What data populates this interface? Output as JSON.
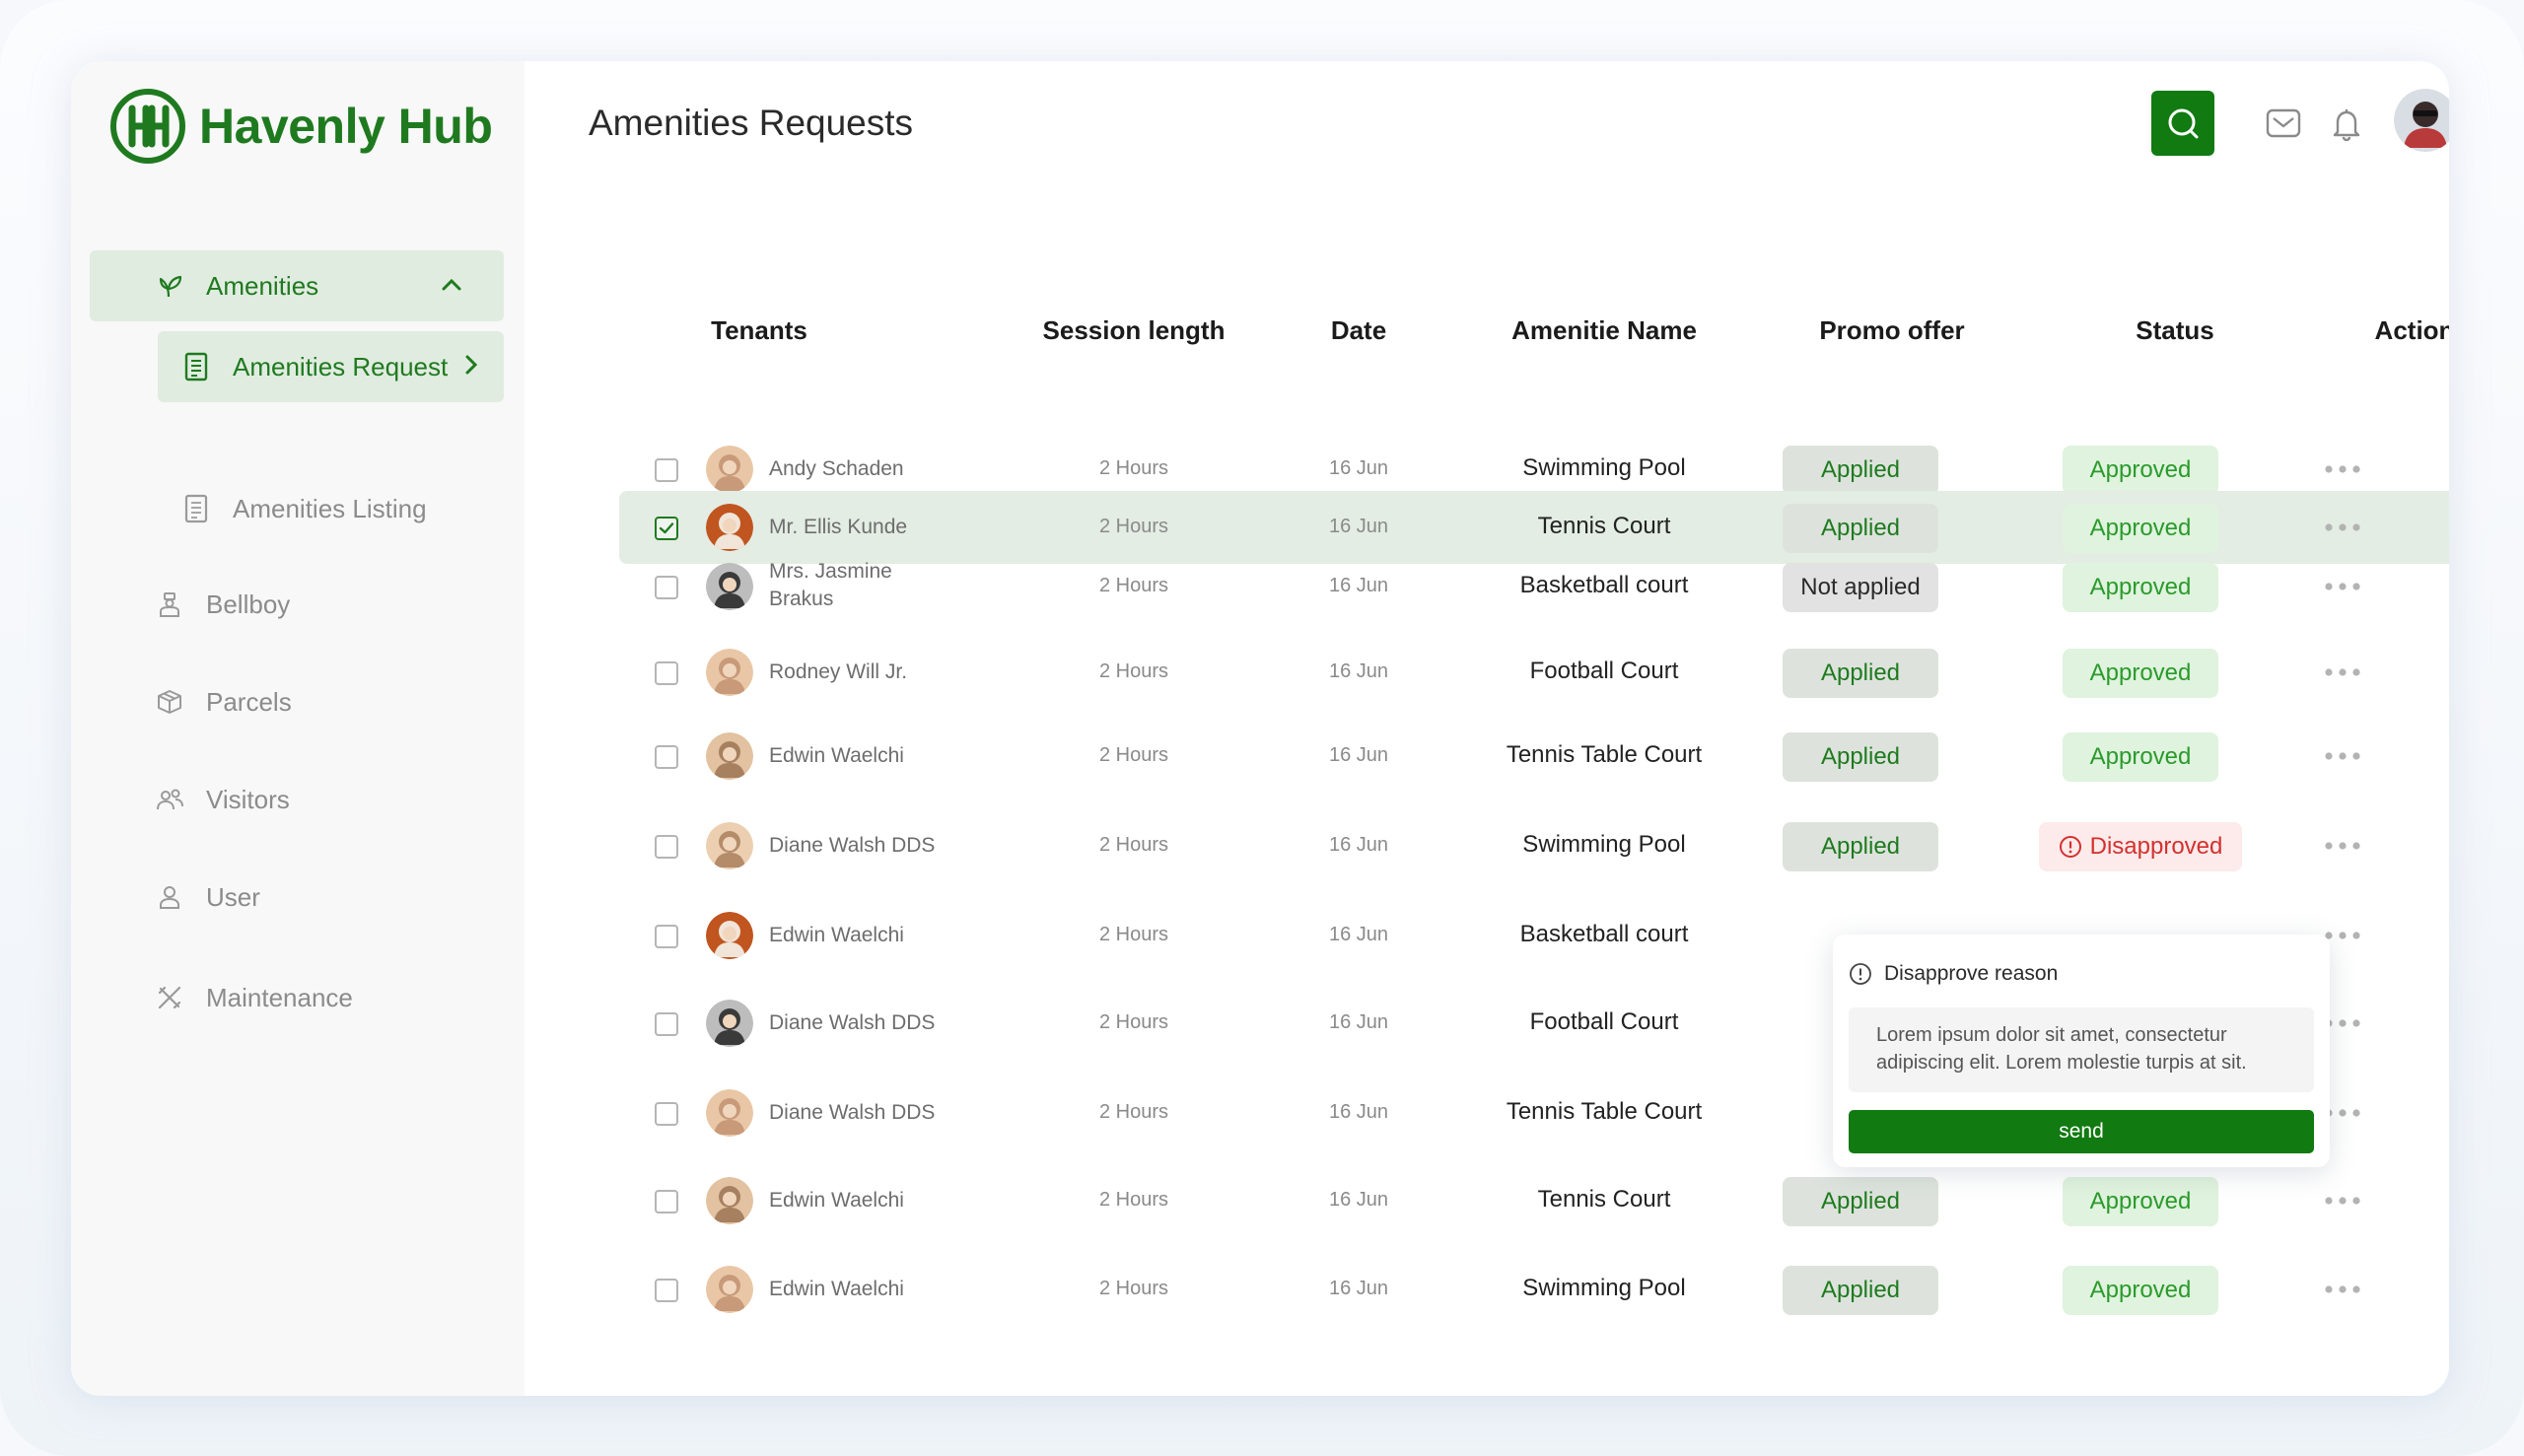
{
  "app": {
    "name": "Havenly Hub"
  },
  "brand": {
    "accent": "#117a11",
    "approved": "#2b9a2b",
    "disapproved": "#d2312f"
  },
  "sidebar": {
    "group": {
      "label": "Amenities",
      "icon": "sprout-icon"
    },
    "sub_active": {
      "label": "Amenities Request",
      "icon": "document-icon"
    },
    "sub_other": {
      "label": "Amenities Listing",
      "icon": "document-icon"
    },
    "items": [
      {
        "label": "Bellboy",
        "icon": "bellboy-icon"
      },
      {
        "label": "Parcels",
        "icon": "parcel-box-icon"
      },
      {
        "label": "Visitors",
        "icon": "visitors-icon"
      },
      {
        "label": "User",
        "icon": "user-icon"
      },
      {
        "label": "Maintenance",
        "icon": "tools-icon"
      }
    ]
  },
  "header": {
    "title": "Amenities Requests"
  },
  "table": {
    "columns": [
      "Tenants",
      "Session length",
      "Date",
      "Amenitie Name",
      "Promo offer",
      "Status",
      "Action"
    ],
    "rows": [
      {
        "name": "Andy Schaden",
        "session": "2 Hours",
        "date": "16 Jun",
        "amenity": "Swimming Pool",
        "promo": "Applied",
        "status": "Approved",
        "checked": false
      },
      {
        "name": "Mr. Ellis Kunde",
        "session": "2 Hours",
        "date": "16 Jun",
        "amenity": "Tennis Court",
        "promo": "Applied",
        "status": "Approved",
        "checked": true
      },
      {
        "name": "Mrs. Jasmine Brakus",
        "session": "2 Hours",
        "date": "16 Jun",
        "amenity": "Basketball court",
        "promo": "Not applied",
        "status": "Approved",
        "checked": false
      },
      {
        "name": "Rodney Will Jr.",
        "session": "2 Hours",
        "date": "16 Jun",
        "amenity": "Football Court",
        "promo": "Applied",
        "status": "Approved",
        "checked": false
      },
      {
        "name": "Edwin Waelchi",
        "session": "2 Hours",
        "date": "16 Jun",
        "amenity": "Tennis Table Court",
        "promo": "Applied",
        "status": "Approved",
        "checked": false
      },
      {
        "name": "Diane Walsh DDS",
        "session": "2 Hours",
        "date": "16 Jun",
        "amenity": "Swimming Pool",
        "promo": "Applied",
        "status": "Disapproved",
        "checked": false
      },
      {
        "name": "Edwin Waelchi",
        "session": "2 Hours",
        "date": "16 Jun",
        "amenity": "Basketball court",
        "promo": "",
        "status": "",
        "checked": false
      },
      {
        "name": "Diane Walsh DDS",
        "session": "2 Hours",
        "date": "16 Jun",
        "amenity": "Football Court",
        "promo": "",
        "status": "",
        "checked": false
      },
      {
        "name": "Diane Walsh DDS",
        "session": "2 Hours",
        "date": "16 Jun",
        "amenity": "Tennis Table Court",
        "promo": "",
        "status": "",
        "checked": false
      },
      {
        "name": "Edwin Waelchi",
        "session": "2 Hours",
        "date": "16 Jun",
        "amenity": "Tennis Court",
        "promo": "Applied",
        "status": "Approved",
        "checked": false
      },
      {
        "name": "Edwin Waelchi",
        "session": "2 Hours",
        "date": "16 Jun",
        "amenity": "Swimming Pool",
        "promo": "Applied",
        "status": "Approved",
        "checked": false
      }
    ]
  },
  "popover": {
    "title": "Disapprove reason",
    "text": "Lorem ipsum dolor sit amet, consectetur adipiscing elit. Lorem molestie turpis at sit.",
    "send_label": "send"
  }
}
